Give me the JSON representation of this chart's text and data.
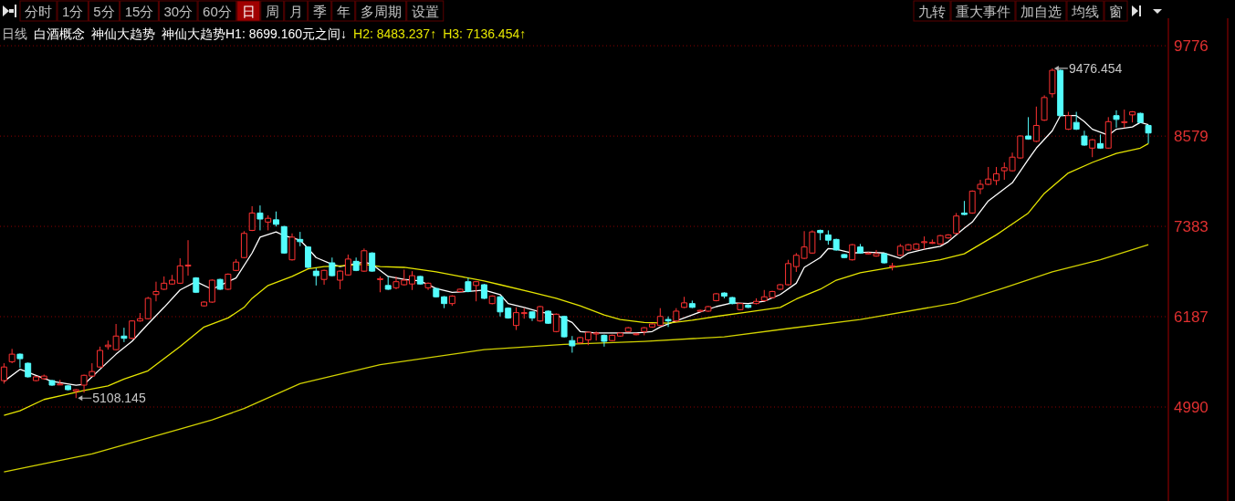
{
  "chart_data": {
    "type": "candlestick",
    "title": "日线",
    "subtitle": "白酒概念",
    "categories": [
      null,
      null,
      null,
      null,
      null,
      null,
      null,
      null,
      null,
      null,
      null,
      null,
      null,
      null,
      null,
      null,
      null,
      null,
      null,
      null,
      null,
      null,
      null,
      null,
      null,
      null,
      null,
      null,
      null,
      null,
      null,
      null,
      null,
      null,
      null,
      null,
      null,
      null,
      null,
      null,
      null,
      null,
      null,
      null,
      null,
      null,
      null,
      null,
      null,
      null,
      null,
      null,
      null,
      null,
      null,
      null,
      null,
      null,
      null,
      null,
      null,
      null,
      null,
      null,
      null,
      null,
      null,
      null,
      null,
      null,
      null,
      null,
      null,
      null,
      null,
      null,
      null,
      null,
      null,
      null,
      null,
      null,
      null,
      null,
      null,
      null,
      null,
      null,
      null,
      null,
      null,
      null,
      null,
      null,
      null,
      null,
      null,
      null,
      null,
      null,
      null,
      null,
      null,
      null,
      null,
      null,
      null,
      null,
      null,
      null,
      null,
      null,
      null,
      null,
      null,
      null,
      null,
      null,
      null,
      null,
      null,
      null,
      null,
      null,
      null,
      null,
      null,
      null,
      null,
      null,
      null,
      null,
      null,
      null,
      null,
      null,
      null,
      null,
      null,
      null,
      null,
      null,
      null,
      null
    ],
    "ohlc": [
      [
        5340,
        5570,
        5300,
        5520
      ],
      [
        5590,
        5760,
        5570,
        5690
      ],
      [
        5690,
        5700,
        5510,
        5630
      ],
      [
        5570,
        5580,
        5380,
        5390
      ],
      [
        5340,
        5400,
        5330,
        5390
      ],
      [
        5365,
        5420,
        5350,
        5400
      ],
      [
        5340,
        5350,
        5270,
        5280
      ],
      [
        5290,
        5350,
        5280,
        5295
      ],
      [
        5270,
        5280,
        5210,
        5220
      ],
      [
        5200,
        5230,
        5108.145,
        5220
      ],
      [
        5280,
        5420,
        5180,
        5410
      ],
      [
        5400,
        5570,
        5390,
        5460
      ],
      [
        5520,
        5790,
        5510,
        5740
      ],
      [
        5790,
        5870,
        5750,
        5810
      ],
      [
        5750,
        6090,
        5740,
        5930
      ],
      [
        5930,
        6040,
        5850,
        5900
      ],
      [
        5900,
        6140,
        5890,
        6130
      ],
      [
        6130,
        6235,
        6120,
        6160
      ],
      [
        6160,
        6450,
        6150,
        6430
      ],
      [
        6480,
        6650,
        6390,
        6520
      ],
      [
        6550,
        6720,
        6540,
        6630
      ],
      [
        6620,
        6740,
        6610,
        6670
      ],
      [
        6630,
        6960,
        6620,
        6860
      ],
      [
        6860,
        7200,
        6730,
        6870
      ],
      [
        6700,
        6710,
        6500,
        6510
      ],
      [
        6330,
        6390,
        6320,
        6380
      ],
      [
        6380,
        6680,
        6370,
        6670
      ],
      [
        6680,
        6690,
        6540,
        6550
      ],
      [
        6550,
        6760,
        6540,
        6750
      ],
      [
        6800,
        6950,
        6790,
        6910
      ],
      [
        6970,
        7320,
        6960,
        7290
      ],
      [
        7330,
        7650,
        7320,
        7560
      ],
      [
        7560,
        7660,
        7330,
        7480
      ],
      [
        7440,
        7530,
        7330,
        7490
      ],
      [
        7470,
        7580,
        7380,
        7410
      ],
      [
        7380,
        7390,
        7020,
        7030
      ],
      [
        6940,
        7290,
        6930,
        7240
      ],
      [
        7210,
        7310,
        7120,
        7180
      ],
      [
        7110,
        7120,
        6830,
        6840
      ],
      [
        6790,
        6830,
        6600,
        6730
      ],
      [
        6680,
        6810,
        6610,
        6800
      ],
      [
        6900,
        6970,
        6720,
        6730
      ],
      [
        6670,
        6800,
        6550,
        6790
      ],
      [
        6740,
        7010,
        6730,
        6950
      ],
      [
        6920,
        6970,
        6790,
        6800
      ],
      [
        6790,
        7090,
        6780,
        7060
      ],
      [
        7030,
        7040,
        6780,
        6790
      ],
      [
        6680,
        6720,
        6510,
        6690
      ],
      [
        6600,
        6720,
        6540,
        6550
      ],
      [
        6570,
        6720,
        6550,
        6650
      ],
      [
        6610,
        6810,
        6600,
        6670
      ],
      [
        6620,
        6790,
        6540,
        6730
      ],
      [
        6720,
        6730,
        6610,
        6620
      ],
      [
        6570,
        6640,
        6540,
        6630
      ],
      [
        6560,
        6570,
        6440,
        6450
      ],
      [
        6450,
        6460,
        6300,
        6360
      ],
      [
        6360,
        6470,
        6330,
        6460
      ],
      [
        6520,
        6560,
        6510,
        6550
      ],
      [
        6650,
        6700,
        6510,
        6520
      ],
      [
        6600,
        6660,
        6390,
        6650
      ],
      [
        6610,
        6620,
        6420,
        6430
      ],
      [
        6360,
        6470,
        6350,
        6460
      ],
      [
        6450,
        6460,
        6190,
        6250
      ],
      [
        6300,
        6310,
        6160,
        6170
      ],
      [
        6070,
        6310,
        6010,
        6240
      ],
      [
        6230,
        6300,
        6160,
        6240
      ],
      [
        6250,
        6260,
        6130,
        6170
      ],
      [
        6130,
        6330,
        6120,
        6320
      ],
      [
        6260,
        6270,
        6090,
        6100
      ],
      [
        5990,
        6230,
        5980,
        6220
      ],
      [
        6190,
        6200,
        5910,
        5920
      ],
      [
        5870,
        5930,
        5710,
        5800
      ],
      [
        5840,
        5920,
        5830,
        5910
      ],
      [
        5880,
        5990,
        5810,
        5980
      ],
      [
        5960,
        5990,
        5870,
        5970
      ],
      [
        5940,
        5950,
        5790,
        5860
      ],
      [
        5870,
        5950,
        5860,
        5940
      ],
      [
        5930,
        5980,
        5920,
        5970
      ],
      [
        5990,
        6050,
        5980,
        6040
      ],
      [
        5950,
        5970,
        5940,
        5960
      ],
      [
        5990,
        6050,
        5940,
        6040
      ],
      [
        6050,
        6100,
        6040,
        6090
      ],
      [
        6070,
        6300,
        6060,
        6190
      ],
      [
        6150,
        6190,
        6050,
        6130
      ],
      [
        6130,
        6300,
        6120,
        6260
      ],
      [
        6310,
        6450,
        6300,
        6370
      ],
      [
        6360,
        6400,
        6300,
        6310
      ],
      [
        6260,
        6280,
        6250,
        6270
      ],
      [
        6260,
        6330,
        6250,
        6320
      ],
      [
        6400,
        6500,
        6390,
        6490
      ],
      [
        6500,
        6510,
        6430,
        6460
      ],
      [
        6440,
        6450,
        6350,
        6360
      ],
      [
        6280,
        6370,
        6270,
        6360
      ],
      [
        6340,
        6350,
        6300,
        6310
      ],
      [
        6360,
        6430,
        6350,
        6390
      ],
      [
        6400,
        6540,
        6390,
        6450
      ],
      [
        6440,
        6530,
        6430,
        6520
      ],
      [
        6550,
        6620,
        6540,
        6610
      ],
      [
        6610,
        6940,
        6600,
        6890
      ],
      [
        6850,
        7030,
        6780,
        7000
      ],
      [
        6960,
        7320,
        6950,
        7110
      ],
      [
        7030,
        7330,
        7020,
        7310
      ],
      [
        7330,
        7340,
        7200,
        7300
      ],
      [
        7270,
        7330,
        7140,
        7200
      ],
      [
        7210,
        7220,
        7060,
        7070
      ],
      [
        7010,
        7020,
        6960,
        6970
      ],
      [
        6940,
        7150,
        6930,
        7140
      ],
      [
        7110,
        7150,
        7020,
        7030
      ],
      [
        7020,
        7040,
        7010,
        7030
      ],
      [
        6990,
        7070,
        6980,
        7020
      ],
      [
        7020,
        7030,
        6890,
        6900
      ],
      [
        6850,
        6900,
        6800,
        6860
      ],
      [
        7000,
        7150,
        6990,
        7120
      ],
      [
        7070,
        7150,
        7060,
        7140
      ],
      [
        7080,
        7160,
        7070,
        7150
      ],
      [
        7170,
        7250,
        7080,
        7180
      ],
      [
        7160,
        7210,
        7150,
        7170
      ],
      [
        7150,
        7270,
        7140,
        7260
      ],
      [
        7230,
        7280,
        7220,
        7270
      ],
      [
        7290,
        7560,
        7280,
        7520
      ],
      [
        7560,
        7720,
        7530,
        7540
      ],
      [
        7560,
        7860,
        7550,
        7850
      ],
      [
        7880,
        8000,
        7810,
        7940
      ],
      [
        7940,
        8170,
        7930,
        8010
      ],
      [
        7990,
        8170,
        7930,
        8080
      ],
      [
        8120,
        8230,
        8000,
        8160
      ],
      [
        8120,
        8360,
        8110,
        8300
      ],
      [
        8290,
        8590,
        8280,
        8580
      ],
      [
        8580,
        8830,
        8530,
        8540
      ],
      [
        8510,
        8970,
        8500,
        8720
      ],
      [
        8790,
        9120,
        8780,
        9090
      ],
      [
        9140,
        9476.454,
        9090,
        9450
      ],
      [
        9450,
        9460,
        8840,
        8850
      ],
      [
        8670,
        8900,
        8660,
        8850
      ],
      [
        8760,
        8900,
        8660,
        8670
      ],
      [
        8580,
        8650,
        8450,
        8460
      ],
      [
        8420,
        8540,
        8300,
        8530
      ],
      [
        8480,
        8600,
        8410,
        8420
      ],
      [
        8420,
        8830,
        8410,
        8770
      ],
      [
        8850,
        8920,
        8690,
        8800
      ],
      [
        8760,
        8930,
        8690,
        8770
      ],
      [
        8860,
        8910,
        8760,
        8900
      ],
      [
        8880,
        8890,
        8750,
        8760
      ],
      [
        8720,
        8730,
        8480,
        8620
      ]
    ],
    "series": [
      {
        "type": "line",
        "color": "#ffffff",
        "values": [
          5330,
          null,
          5490,
          null,
          5410,
          null,
          5330,
          null,
          null,
          5280,
          5290,
          null,
          5490,
          null,
          5690,
          null,
          5860,
          null,
          6090,
          null,
          6310,
          null,
          6540,
          null,
          6650,
          null,
          6550,
          null,
          null,
          6700,
          null,
          7030,
          7240,
          null,
          7310,
          7260,
          null,
          7200,
          7090,
          6970,
          null,
          6880,
          6850,
          null,
          null,
          6910,
          6880,
          null,
          6720,
          null,
          6680,
          null,
          6660,
          null,
          6560,
          null,
          6510,
          null,
          6520,
          null,
          6540,
          null,
          6480,
          6360,
          null,
          6310,
          null,
          6250,
          null,
          6210,
          null,
          6110,
          5990,
          null,
          5970,
          null,
          null,
          5970,
          null,
          5970,
          null,
          5990,
          6050,
          null,
          6130,
          null,
          6210,
          6250,
          null,
          6320,
          null,
          6370,
          null,
          6360,
          null,
          6390,
          null,
          6480,
          null,
          6630,
          6840,
          null,
          6970,
          7090,
          7080,
          null,
          7030,
          null,
          7040,
          null,
          7030,
          null,
          6960,
          7030,
          null,
          7080,
          null,
          7120,
          7180,
          null,
          7360,
          7440,
          null,
          7720,
          null,
          null,
          7960,
          null,
          8270,
          8420,
          null,
          8650,
          8850,
          null,
          8850,
          8770,
          8670,
          null,
          8590,
          8670,
          null,
          8700,
          8760,
          8730
        ]
      },
      {
        "type": "line",
        "color": "#e6e600",
        "values": [
          4880,
          null,
          4940,
          null,
          null,
          5090,
          null,
          null,
          5160,
          null,
          5210,
          null,
          null,
          5270,
          null,
          5360,
          null,
          null,
          5470,
          null,
          5630,
          null,
          5790,
          null,
          null,
          6050,
          null,
          null,
          6170,
          null,
          6310,
          6430,
          null,
          6600,
          null,
          null,
          6720,
          null,
          6820,
          null,
          6850,
          null,
          6860,
          null,
          null,
          6880,
          null,
          6850,
          null,
          null,
          6840,
          null,
          null,
          null,
          6780,
          null,
          null,
          6720,
          null,
          null,
          6660,
          null,
          6610,
          null,
          null,
          null,
          6510,
          null,
          null,
          6430,
          null,
          null,
          6330,
          null,
          null,
          6210,
          null,
          6150,
          null,
          null,
          6110,
          null,
          null,
          6100,
          null,
          null,
          6140,
          null,
          null,
          6190,
          null,
          null,
          null,
          6250,
          null,
          null,
          null,
          6310,
          null,
          6420,
          null,
          null,
          6550,
          null,
          6670,
          null,
          null,
          6770,
          null,
          null,
          null,
          6840,
          null,
          null,
          6890,
          null,
          null,
          6940,
          null,
          null,
          7020,
          null,
          null,
          null,
          7270,
          null,
          null,
          null,
          7560,
          null,
          7820,
          null,
          null,
          8090,
          null,
          null,
          8230,
          null,
          null,
          8350,
          null,
          null,
          8420,
          8480
        ]
      },
      {
        "type": "line",
        "color": "#d2d200",
        "values": [
          4130,
          null,
          null,
          null,
          null,
          null,
          null,
          null,
          null,
          null,
          null,
          4370,
          null,
          null,
          null,
          null,
          null,
          null,
          null,
          null,
          null,
          null,
          4700,
          null,
          null,
          null,
          4820,
          null,
          null,
          null,
          4970,
          null,
          null,
          null,
          null,
          null,
          null,
          5300,
          null,
          null,
          null,
          null,
          null,
          null,
          null,
          null,
          null,
          5550,
          null,
          null,
          null,
          null,
          null,
          null,
          null,
          null,
          null,
          null,
          null,
          null,
          5750,
          null,
          null,
          null,
          null,
          null,
          null,
          null,
          null,
          null,
          5820,
          null,
          null,
          null,
          null,
          null,
          null,
          null,
          null,
          null,
          5860,
          null,
          null,
          null,
          null,
          null,
          null,
          null,
          null,
          null,
          5920,
          null,
          null,
          null,
          null,
          null,
          null,
          null,
          6030,
          null,
          null,
          null,
          null,
          null,
          null,
          null,
          null,
          6150,
          null,
          null,
          null,
          null,
          null,
          null,
          null,
          null,
          null,
          null,
          null,
          6370,
          null,
          null,
          null,
          null,
          null,
          6570,
          null,
          null,
          null,
          null,
          null,
          6780,
          null,
          null,
          null,
          null,
          null,
          6940,
          null,
          null,
          null,
          null,
          null,
          7140
        ]
      }
    ],
    "ylim": [
      3745,
      10140
    ],
    "yticks": [
      4990,
      6187,
      7383,
      8579,
      9776
    ],
    "grid": "y",
    "tick_labels": "y",
    "annotations": [
      "神仙大趋势",
      "神仙大趋势H1: 8699.160元之间↓",
      "H2: 8483.237↑",
      "H3: 7136.454↑",
      "分时",
      "1分",
      "5分",
      "15分",
      "30分",
      "60分",
      "日",
      "周",
      "月",
      "季",
      "年",
      "多周期",
      "设置",
      "九转",
      "重大事件",
      "加自选",
      "均线",
      "窗",
      "9476.454",
      "5108.145"
    ]
  }
}
